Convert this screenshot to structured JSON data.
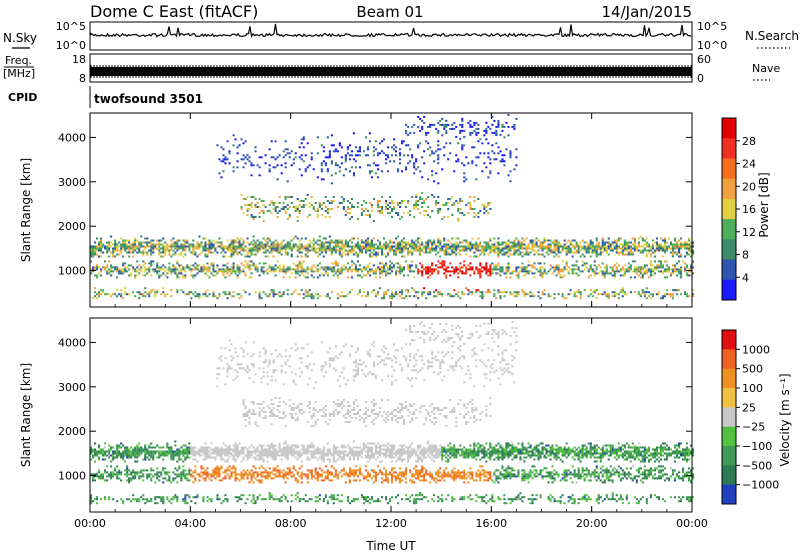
{
  "header": {
    "station": "Dome C East (fitACF)",
    "beam": "Beam 01",
    "date": "14/Jan/2015"
  },
  "strip_panels": {
    "nsky": {
      "label": "N.Sky",
      "ticks": [
        "10^5",
        "10^0"
      ],
      "right_label": "N.Search",
      "right_ticks": [
        "10^5",
        "10^0"
      ]
    },
    "freq": {
      "label_line1": "Freq.",
      "label_line2": "[MHz]",
      "ticks": [
        "18",
        "8"
      ],
      "right_label": "Nave",
      "right_ticks": [
        "60",
        "0"
      ]
    },
    "cpid": {
      "label": "CPID",
      "value": "twofsound 3501"
    }
  },
  "chart_data": [
    {
      "type": "heatmap",
      "name": "power",
      "ylabel": "Slant Range [km]",
      "xlabel": "",
      "x_ticks": [
        "00:00",
        "04:00",
        "08:00",
        "12:00",
        "16:00",
        "20:00",
        "00:00"
      ],
      "x_range_hours": [
        0,
        24
      ],
      "y_ticks": [
        1000,
        2000,
        3000,
        4000
      ],
      "ylim": [
        180,
        4550
      ],
      "colorbar": {
        "label": "Power [dB]",
        "ticks": [
          "28",
          "24",
          "20",
          "16",
          "12",
          "8",
          "4"
        ],
        "range": [
          0,
          32
        ],
        "colors": [
          "#1a1aff",
          "#2d55b0",
          "#3c8a6a",
          "#4fae5a",
          "#e0d040",
          "#f0a040",
          "#f57020",
          "#f03020",
          "#e00000"
        ]
      }
    },
    {
      "type": "heatmap",
      "name": "velocity",
      "ylabel": "Slant Range [km]",
      "xlabel": "Time UT",
      "x_ticks": [
        "00:00",
        "04:00",
        "08:00",
        "12:00",
        "16:00",
        "20:00",
        "00:00"
      ],
      "x_range_hours": [
        0,
        24
      ],
      "y_ticks": [
        1000,
        2000,
        3000,
        4000
      ],
      "ylim": [
        180,
        4550
      ],
      "colorbar": {
        "label": "Velocity [m s⁻¹]",
        "ticks": [
          "1000",
          "500",
          "100",
          "25",
          "−25",
          "−100",
          "−500",
          "−1000"
        ],
        "colors": [
          "#2040c0",
          "#2e7a55",
          "#3e9a55",
          "#52c040",
          "#c8c8c8",
          "#f0c040",
          "#f09020",
          "#f06020",
          "#e01010"
        ]
      }
    }
  ]
}
